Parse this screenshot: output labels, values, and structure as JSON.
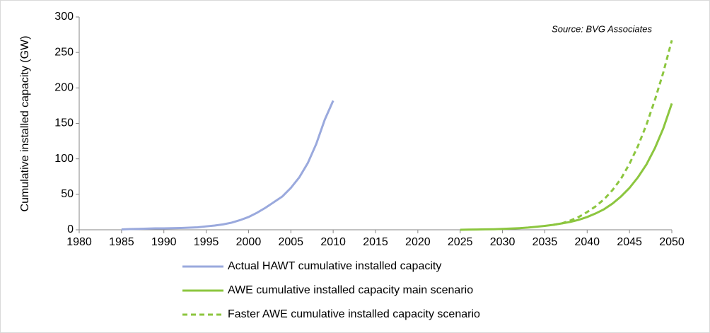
{
  "chart_data": {
    "type": "line",
    "y_label": "Cumulative installed capacity (GW)",
    "annotation": "Source: BVG Associates",
    "x": [
      1985,
      1986,
      1987,
      1988,
      1989,
      1990,
      1991,
      1992,
      1993,
      1994,
      1995,
      1996,
      1997,
      1998,
      1999,
      2000,
      2001,
      2002,
      2003,
      2004,
      2005,
      2006,
      2007,
      2008,
      2009,
      2010,
      2011,
      2012,
      2013,
      2014,
      2015,
      2016,
      2017,
      2018,
      2019,
      2020,
      2021,
      2022,
      2023,
      2024,
      2025,
      2026,
      2027,
      2028,
      2029,
      2030,
      2031,
      2032,
      2033,
      2034,
      2035,
      2036,
      2037,
      2038,
      2039,
      2040,
      2041,
      2042,
      2043,
      2044,
      2045,
      2046,
      2047,
      2048,
      2049,
      2050
    ],
    "series": [
      {
        "name": "Actual HAWT cumulative installed capacity",
        "color": "#9aa9dd",
        "dashed": false,
        "values": [
          0.5,
          1,
          1.3,
          1.6,
          2,
          2,
          2.2,
          2.5,
          3,
          3.5,
          4.8,
          6,
          7.6,
          10,
          13.6,
          18,
          24,
          31,
          39,
          47,
          59,
          74,
          94,
          121,
          155,
          182,
          null,
          null,
          null,
          null,
          null,
          null,
          null,
          null,
          null,
          null,
          null,
          null,
          null,
          null,
          null,
          null,
          null,
          null,
          null,
          null,
          null,
          null,
          null,
          null,
          null,
          null,
          null,
          null,
          null,
          null,
          null,
          null,
          null,
          null,
          null,
          null,
          null,
          null,
          null,
          null
        ]
      },
      {
        "name": "AWE cumulative installed capacity main scenario",
        "color": "#8cc63f",
        "dashed": false,
        "values": [
          null,
          null,
          null,
          null,
          null,
          null,
          null,
          null,
          null,
          null,
          null,
          null,
          null,
          null,
          null,
          null,
          null,
          null,
          null,
          null,
          null,
          null,
          null,
          null,
          null,
          null,
          null,
          null,
          null,
          null,
          null,
          null,
          null,
          null,
          null,
          null,
          null,
          null,
          null,
          null,
          0,
          0.2,
          0.4,
          0.6,
          0.8,
          1.2,
          1.7,
          2.3,
          3.1,
          4.2,
          5.5,
          7,
          9,
          11,
          14,
          18,
          23,
          29,
          37,
          47,
          59,
          74,
          92,
          115,
          143,
          178
        ]
      },
      {
        "name": "Faster AWE cumulative installed capacity scenario",
        "color": "#8cc63f",
        "dashed": true,
        "values": [
          null,
          null,
          null,
          null,
          null,
          null,
          null,
          null,
          null,
          null,
          null,
          null,
          null,
          null,
          null,
          null,
          null,
          null,
          null,
          null,
          null,
          null,
          null,
          null,
          null,
          null,
          null,
          null,
          null,
          null,
          null,
          null,
          null,
          null,
          null,
          null,
          null,
          null,
          null,
          null,
          null,
          null,
          null,
          null,
          null,
          null,
          null,
          null,
          null,
          null,
          null,
          7,
          9,
          13,
          18,
          25,
          33,
          43,
          56,
          72,
          93,
          118,
          148,
          183,
          222,
          267
        ]
      }
    ],
    "xlim": [
      1980,
      2050
    ],
    "xticks": [
      1980,
      1985,
      1990,
      1995,
      2000,
      2005,
      2010,
      2015,
      2020,
      2025,
      2030,
      2035,
      2040,
      2045,
      2050
    ],
    "ylim": [
      0,
      300
    ],
    "yticks": [
      0,
      50,
      100,
      150,
      200,
      250,
      300
    ],
    "grid": false
  }
}
